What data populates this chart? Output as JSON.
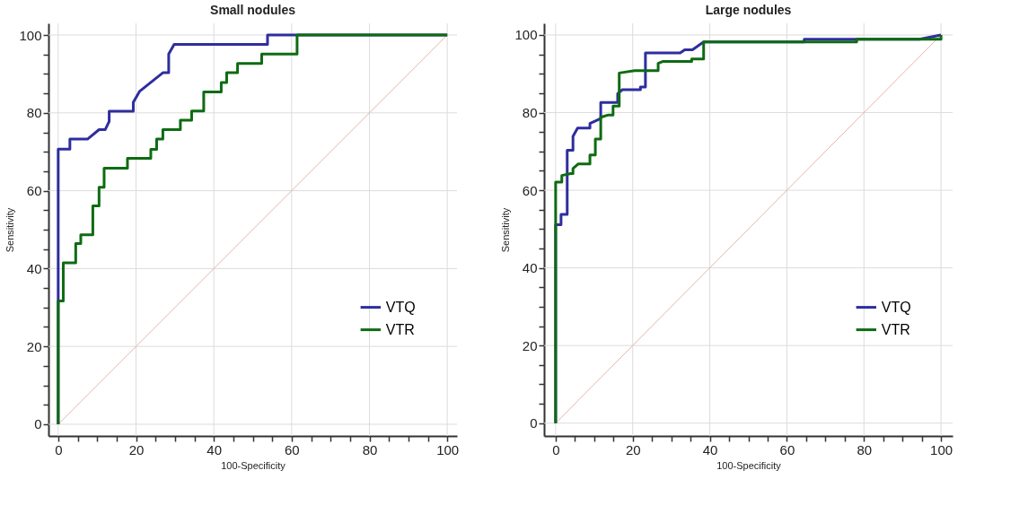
{
  "chart_data": [
    {
      "type": "line",
      "title": "Small nodules",
      "xlabel": "100-Specificity",
      "ylabel": "Sensitivity",
      "xlim": [
        -2.5,
        102.5
      ],
      "ylim": [
        -3,
        103
      ],
      "xticks": [
        0,
        {
          "value": 5,
          "label": null
        },
        {
          "value": 10,
          "label": null
        },
        {
          "value": 15,
          "label": null
        },
        20,
        {
          "value": 25,
          "label": null
        },
        {
          "value": 30,
          "label": null
        },
        {
          "value": 35,
          "label": null
        },
        40,
        {
          "value": 45,
          "label": null
        },
        {
          "value": 50,
          "label": null
        },
        {
          "value": 55,
          "label": null
        },
        60,
        {
          "value": 65,
          "label": null
        },
        {
          "value": 70,
          "label": null
        },
        {
          "value": 75,
          "label": null
        },
        80,
        {
          "value": 85,
          "label": null
        },
        {
          "value": 90,
          "label": null
        },
        {
          "value": 95,
          "label": null
        },
        100
      ],
      "yticks": [
        0,
        {
          "value": 5,
          "label": null
        },
        {
          "value": 10,
          "label": null
        },
        {
          "value": 15,
          "label": null
        },
        20,
        {
          "value": 25,
          "label": null
        },
        {
          "value": 30,
          "label": null
        },
        {
          "value": 35,
          "label": null
        },
        40,
        {
          "value": 45,
          "label": null
        },
        {
          "value": 50,
          "label": null
        },
        {
          "value": 55,
          "label": null
        },
        60,
        {
          "value": 65,
          "label": null
        },
        {
          "value": 70,
          "label": null
        },
        {
          "value": 75,
          "label": null
        },
        80,
        {
          "value": 85,
          "label": null
        },
        {
          "value": 90,
          "label": null
        },
        {
          "value": 95,
          "label": null
        },
        100
      ],
      "grid": true,
      "legend": "right",
      "line_style": "solid",
      "marker": "none",
      "series": [
        {
          "type": "line",
          "color": "#e6b4ac",
          "x": [
            0,
            100
          ],
          "values": [
            0,
            100
          ]
        },
        {
          "name": "VTQ",
          "color": "#2e2e9e",
          "x": [
            0,
            0,
            3.0,
            3.0,
            7.6,
            10.5,
            12.1,
            13.1,
            13.1,
            19.3,
            19.3,
            20.9,
            26.9,
            28.4,
            28.4,
            29.8,
            53.8,
            53.8,
            60.8,
            100
          ],
          "values": [
            0,
            70.7,
            70.7,
            73.3,
            73.3,
            75.7,
            75.7,
            77.8,
            80.4,
            80.4,
            82.7,
            85.5,
            90.3,
            90.3,
            95.1,
            97.6,
            97.6,
            100,
            100,
            100
          ]
        },
        {
          "name": "VTR",
          "color": "#0e6b12",
          "x": [
            0,
            0,
            1.3,
            1.3,
            4.5,
            4.5,
            5.8,
            5.8,
            8.9,
            8.9,
            10.5,
            10.5,
            11.8,
            11.8,
            17.8,
            17.8,
            23.8,
            23.8,
            25.3,
            25.3,
            26.9,
            26.9,
            31.4,
            31.4,
            34.3,
            34.3,
            37.4,
            37.4,
            41.9,
            41.9,
            43.3,
            43.3,
            46.1,
            46.1,
            52.3,
            52.3,
            61.4,
            61.4,
            100
          ],
          "values": [
            0,
            31.7,
            31.7,
            41.5,
            41.5,
            46.4,
            46.4,
            48.7,
            48.7,
            56.1,
            56.1,
            60.9,
            60.9,
            65.8,
            65.8,
            68.3,
            68.3,
            70.6,
            70.6,
            73.3,
            73.3,
            75.7,
            75.7,
            78.1,
            78.1,
            80.5,
            80.5,
            85.4,
            85.4,
            87.8,
            87.8,
            90.3,
            90.3,
            92.7,
            92.7,
            95.1,
            95.1,
            100,
            100
          ]
        }
      ]
    },
    {
      "type": "line",
      "title": "Large nodules",
      "xlabel": "100-Specificity",
      "ylabel": "Sensitivity",
      "xlim": [
        -3,
        103
      ],
      "ylim": [
        -3.3,
        103
      ],
      "xticks": [
        0,
        {
          "value": 5,
          "label": null
        },
        {
          "value": 10,
          "label": null
        },
        {
          "value": 15,
          "label": null
        },
        20,
        {
          "value": 25,
          "label": null
        },
        {
          "value": 30,
          "label": null
        },
        {
          "value": 35,
          "label": null
        },
        40,
        {
          "value": 45,
          "label": null
        },
        {
          "value": 50,
          "label": null
        },
        {
          "value": 55,
          "label": null
        },
        60,
        {
          "value": 65,
          "label": null
        },
        {
          "value": 70,
          "label": null
        },
        {
          "value": 75,
          "label": null
        },
        80,
        {
          "value": 85,
          "label": null
        },
        {
          "value": 90,
          "label": null
        },
        {
          "value": 95,
          "label": null
        },
        100
      ],
      "yticks": [
        0,
        {
          "value": 5,
          "label": null
        },
        {
          "value": 10,
          "label": null
        },
        {
          "value": 15,
          "label": null
        },
        20,
        {
          "value": 25,
          "label": null
        },
        {
          "value": 30,
          "label": null
        },
        {
          "value": 35,
          "label": null
        },
        40,
        {
          "value": 45,
          "label": null
        },
        {
          "value": 50,
          "label": null
        },
        {
          "value": 55,
          "label": null
        },
        60,
        {
          "value": 65,
          "label": null
        },
        {
          "value": 70,
          "label": null
        },
        {
          "value": 75,
          "label": null
        },
        80,
        {
          "value": 85,
          "label": null
        },
        {
          "value": 90,
          "label": null
        },
        {
          "value": 95,
          "label": null
        },
        100
      ],
      "grid": true,
      "legend": "right",
      "line_style": "solid",
      "marker": "none",
      "series": [
        {
          "type": "line",
          "color": "#e6b4ac",
          "x": [
            0,
            100
          ],
          "values": [
            0,
            100
          ]
        },
        {
          "name": "VTQ",
          "color": "#2e2e9e",
          "x": [
            0,
            0,
            1.4,
            1.4,
            3.0,
            3.0,
            4.5,
            4.5,
            5.7,
            8.9,
            8.9,
            11.7,
            11.7,
            16.1,
            16.1,
            17.3,
            22.0,
            22.0,
            23.3,
            23.3,
            32.3,
            33.5,
            35.5,
            38.4,
            64.5,
            64.5,
            77.7,
            94.4,
            100
          ],
          "values": [
            0,
            51.1,
            51.1,
            53.8,
            53.8,
            70.3,
            70.3,
            73.9,
            76.0,
            76.0,
            77.2,
            78.5,
            82.6,
            82.6,
            84.9,
            85.9,
            85.9,
            86.6,
            86.6,
            95.4,
            95.4,
            96.2,
            96.2,
            98.2,
            98.2,
            98.9,
            98.9,
            98.9,
            100
          ]
        },
        {
          "name": "VTR",
          "color": "#0e6b12",
          "x": [
            0,
            0,
            1.6,
            1.6,
            3.9,
            4.5,
            4.5,
            5.9,
            8.9,
            8.9,
            10.3,
            10.3,
            11.7,
            11.7,
            13.7,
            14.9,
            14.9,
            16.5,
            16.5,
            20.5,
            26.6,
            26.6,
            27.9,
            35.3,
            35.3,
            38.4,
            38.4,
            78.1,
            78.1,
            100,
            100
          ],
          "values": [
            0,
            62.1,
            62.1,
            63.8,
            64.3,
            64.3,
            65.6,
            66.8,
            66.8,
            69.1,
            69.1,
            73.2,
            73.2,
            78.8,
            79.4,
            79.4,
            81.7,
            81.7,
            90.2,
            90.8,
            90.8,
            92.7,
            93.2,
            93.2,
            93.8,
            93.8,
            98.2,
            98.2,
            98.9,
            98.9,
            100
          ]
        }
      ]
    }
  ]
}
